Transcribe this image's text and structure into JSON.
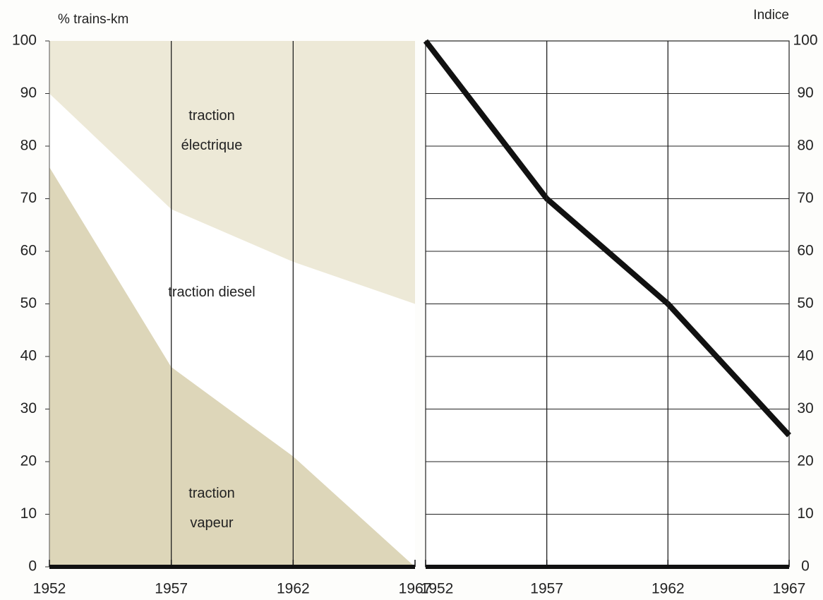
{
  "chart_data": [
    {
      "type": "stacked_area",
      "y_label": "% trains-km",
      "x": [
        1952,
        1957,
        1962,
        1967
      ],
      "series": [
        {
          "name": "traction vapeur",
          "color": "#ddd6b9",
          "values": [
            76,
            38,
            21,
            0
          ]
        },
        {
          "name": "traction diesel",
          "color": "#ffffff",
          "values": [
            14,
            30,
            37,
            50
          ]
        },
        {
          "name": "traction électrique",
          "color": "#ede9d7",
          "values": [
            10,
            32,
            42,
            50
          ]
        }
      ],
      "xlim": [
        1952,
        1967
      ],
      "xticks": [
        1952,
        1957,
        1962,
        1967
      ],
      "ylim": [
        0,
        100
      ],
      "yticks": [
        0,
        10,
        20,
        30,
        40,
        50,
        60,
        70,
        80,
        90,
        100
      ],
      "vgrid": [
        1957,
        1962
      ]
    },
    {
      "type": "line",
      "y_label": "Indice",
      "x": [
        1952,
        1957,
        1962,
        1967
      ],
      "series": [
        {
          "color": "#111111",
          "values": [
            100,
            70,
            50,
            25
          ]
        }
      ],
      "xlim": [
        1952,
        1967
      ],
      "xticks": [
        1952,
        1957,
        1962,
        1967
      ],
      "y2lim": [
        0,
        100
      ],
      "y2ticks": [
        0,
        10,
        20,
        30,
        40,
        50,
        60,
        70,
        80,
        90,
        100
      ],
      "grid": true,
      "vgrid": [
        1957,
        1962
      ]
    }
  ]
}
